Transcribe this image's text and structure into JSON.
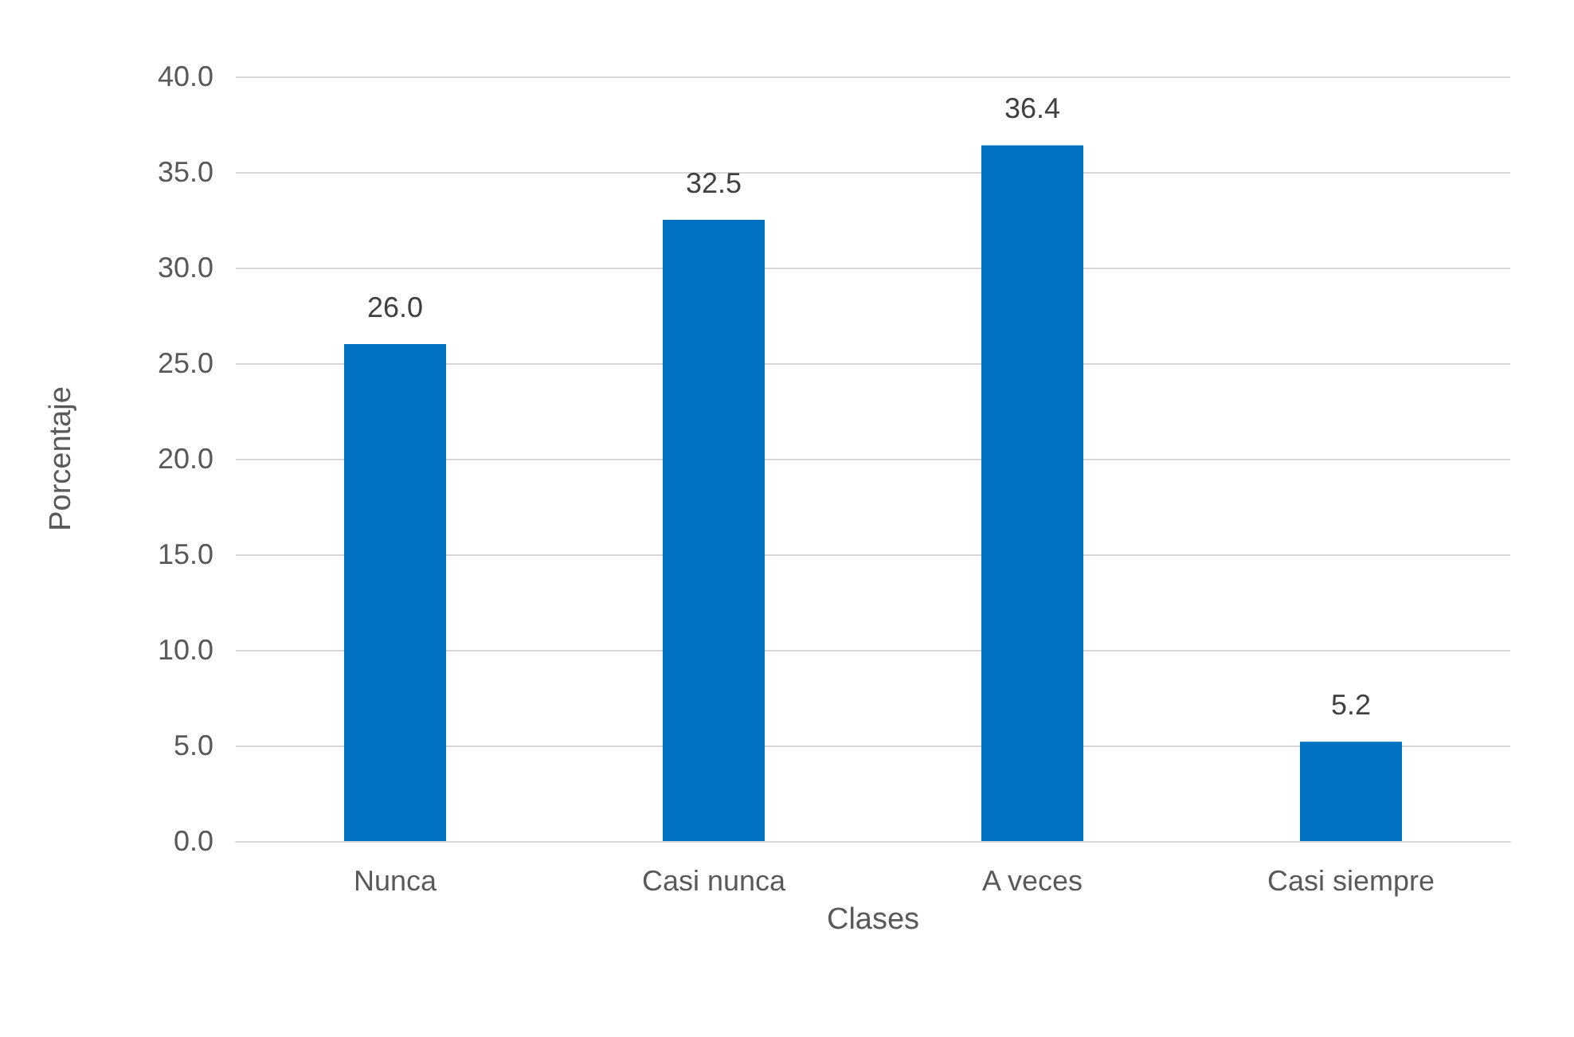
{
  "chart_data": {
    "type": "bar",
    "xlabel": "Clases",
    "ylabel": "Porcentaje",
    "categories": [
      "Nunca",
      "Casi nunca",
      "A veces",
      "Casi siempre"
    ],
    "values": [
      26.0,
      32.5,
      36.4,
      5.2
    ],
    "value_labels": [
      "26.0",
      "32.5",
      "36.4",
      "5.2"
    ],
    "color": "#0070c0",
    "ylim": [
      0,
      40
    ],
    "yticks": [
      {
        "value": 0,
        "label": "0.0"
      },
      {
        "value": 5,
        "label": "5.0"
      },
      {
        "value": 10,
        "label": "10.0"
      },
      {
        "value": 15,
        "label": "15.0"
      },
      {
        "value": 20,
        "label": "20.0"
      },
      {
        "value": 25,
        "label": "25.0"
      },
      {
        "value": 30,
        "label": "30.0"
      },
      {
        "value": 35,
        "label": "35.0"
      },
      {
        "value": 40,
        "label": "40.0"
      }
    ],
    "grid": "y"
  }
}
